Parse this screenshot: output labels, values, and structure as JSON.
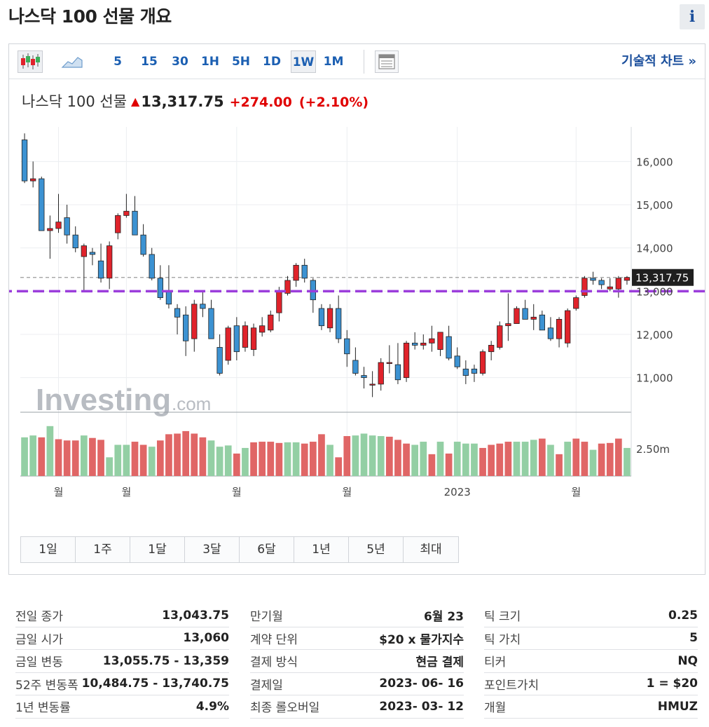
{
  "header": {
    "title": "나스닥 100 선물 개요",
    "info_label": "i"
  },
  "toolbar": {
    "intervals": [
      "5",
      "15",
      "30",
      "1H",
      "5H",
      "1D",
      "1W",
      "1M"
    ],
    "active_interval": "1W",
    "tech_chart_link": "기술적 차트 »",
    "icons": [
      "candlestick-icon",
      "area-chart-icon",
      "table-view-icon"
    ]
  },
  "quote": {
    "name": "나스닥 100 선물",
    "arrow": "▲",
    "price": "13,317.75",
    "change": "+274.00",
    "change_pct": "(+2.10%)",
    "up_color": "#e00000"
  },
  "chart_data": {
    "type": "candlestick",
    "interval": "weekly",
    "y_ticks": [
      "16,000",
      "15,000",
      "14,000",
      "13,000",
      "12,000",
      "11,000"
    ],
    "y_tick_values": [
      16000,
      15000,
      14000,
      13000,
      12000,
      11000
    ],
    "ylim": [
      10200,
      16800
    ],
    "last_price_label": "13,317.75",
    "last_price": 13317.75,
    "horizontal_line_level": 13000,
    "horizontal_line_color": "#9b3ddb",
    "volume_tick": "2.50m",
    "x_labels": [
      {
        "text": "월",
        "index": 4
      },
      {
        "text": "월",
        "index": 12
      },
      {
        "text": "월",
        "index": 25
      },
      {
        "text": "월",
        "index": 38
      },
      {
        "text": "2023",
        "index": 51
      },
      {
        "text": "월",
        "index": 65
      }
    ],
    "up_color": "#e0232b",
    "down_color": "#3c92d2",
    "volume_up_color": "#e06666",
    "volume_down_color": "#93cfa4",
    "candles": [
      {
        "o": 16500,
        "h": 16650,
        "l": 15500,
        "c": 15550
      },
      {
        "o": 15550,
        "h": 16000,
        "l": 15400,
        "c": 15600
      },
      {
        "o": 15600,
        "h": 15650,
        "l": 14400,
        "c": 14400
      },
      {
        "o": 14400,
        "h": 14750,
        "l": 13750,
        "c": 14450
      },
      {
        "o": 14450,
        "h": 15250,
        "l": 14350,
        "c": 14600
      },
      {
        "o": 14700,
        "h": 15000,
        "l": 14100,
        "c": 14300
      },
      {
        "o": 14300,
        "h": 14500,
        "l": 13900,
        "c": 14000
      },
      {
        "o": 13800,
        "h": 14100,
        "l": 13000,
        "c": 14050
      },
      {
        "o": 13900,
        "h": 14000,
        "l": 13600,
        "c": 13850
      },
      {
        "o": 13700,
        "h": 14100,
        "l": 13200,
        "c": 13300
      },
      {
        "o": 13300,
        "h": 14150,
        "l": 13050,
        "c": 14050
      },
      {
        "o": 14350,
        "h": 14800,
        "l": 14200,
        "c": 14750
      },
      {
        "o": 14750,
        "h": 15250,
        "l": 14700,
        "c": 14850
      },
      {
        "o": 14850,
        "h": 15200,
        "l": 14300,
        "c": 14300
      },
      {
        "o": 14300,
        "h": 14550,
        "l": 13800,
        "c": 13850
      },
      {
        "o": 13850,
        "h": 14000,
        "l": 13250,
        "c": 13300
      },
      {
        "o": 13300,
        "h": 13600,
        "l": 12800,
        "c": 12850
      },
      {
        "o": 13000,
        "h": 13600,
        "l": 12600,
        "c": 12700
      },
      {
        "o": 12600,
        "h": 12700,
        "l": 12000,
        "c": 12400
      },
      {
        "o": 12450,
        "h": 12650,
        "l": 11500,
        "c": 11850
      },
      {
        "o": 11900,
        "h": 12800,
        "l": 11600,
        "c": 12700
      },
      {
        "o": 12700,
        "h": 13000,
        "l": 12400,
        "c": 12600
      },
      {
        "o": 12600,
        "h": 12800,
        "l": 11900,
        "c": 11900
      },
      {
        "o": 11700,
        "h": 12000,
        "l": 11050,
        "c": 11100
      },
      {
        "o": 11400,
        "h": 12200,
        "l": 11300,
        "c": 12150
      },
      {
        "o": 12200,
        "h": 12400,
        "l": 11400,
        "c": 11600
      },
      {
        "o": 11700,
        "h": 12300,
        "l": 11600,
        "c": 12200
      },
      {
        "o": 11650,
        "h": 12250,
        "l": 11500,
        "c": 12150
      },
      {
        "o": 12050,
        "h": 12400,
        "l": 11950,
        "c": 12200
      },
      {
        "o": 12100,
        "h": 12550,
        "l": 12050,
        "c": 12450
      },
      {
        "o": 12500,
        "h": 13100,
        "l": 12300,
        "c": 13000
      },
      {
        "o": 12950,
        "h": 13350,
        "l": 12900,
        "c": 13250
      },
      {
        "o": 13250,
        "h": 13650,
        "l": 13100,
        "c": 13600
      },
      {
        "o": 13600,
        "h": 13750,
        "l": 13200,
        "c": 13300
      },
      {
        "o": 13250,
        "h": 13300,
        "l": 12500,
        "c": 12800
      },
      {
        "o": 12600,
        "h": 12700,
        "l": 12100,
        "c": 12200
      },
      {
        "o": 12150,
        "h": 12700,
        "l": 12050,
        "c": 12600
      },
      {
        "o": 12600,
        "h": 12900,
        "l": 11800,
        "c": 11900
      },
      {
        "o": 11900,
        "h": 12100,
        "l": 11250,
        "c": 11550
      },
      {
        "o": 11400,
        "h": 11700,
        "l": 11050,
        "c": 11100
      },
      {
        "o": 11050,
        "h": 11250,
        "l": 10750,
        "c": 11000
      },
      {
        "o": 10850,
        "h": 11150,
        "l": 10550,
        "c": 10850
      },
      {
        "o": 10850,
        "h": 11450,
        "l": 10700,
        "c": 11350
      },
      {
        "o": 11350,
        "h": 11750,
        "l": 11100,
        "c": 11350
      },
      {
        "o": 11300,
        "h": 11800,
        "l": 10850,
        "c": 10950
      },
      {
        "o": 11000,
        "h": 11850,
        "l": 10900,
        "c": 11800
      },
      {
        "o": 11800,
        "h": 12050,
        "l": 11650,
        "c": 11750
      },
      {
        "o": 11750,
        "h": 12000,
        "l": 11650,
        "c": 11800
      },
      {
        "o": 11800,
        "h": 12200,
        "l": 11600,
        "c": 11900
      },
      {
        "o": 11650,
        "h": 12050,
        "l": 11500,
        "c": 12050
      },
      {
        "o": 11950,
        "h": 12200,
        "l": 11400,
        "c": 11450
      },
      {
        "o": 11500,
        "h": 11700,
        "l": 11200,
        "c": 11250
      },
      {
        "o": 11200,
        "h": 11400,
        "l": 10850,
        "c": 11050
      },
      {
        "o": 11200,
        "h": 11300,
        "l": 10900,
        "c": 11100
      },
      {
        "o": 11100,
        "h": 11650,
        "l": 11050,
        "c": 11600
      },
      {
        "o": 11600,
        "h": 11850,
        "l": 11400,
        "c": 11750
      },
      {
        "o": 11700,
        "h": 12300,
        "l": 11650,
        "c": 12200
      },
      {
        "o": 12200,
        "h": 12950,
        "l": 11850,
        "c": 12250
      },
      {
        "o": 12250,
        "h": 12650,
        "l": 12250,
        "c": 12600
      },
      {
        "o": 12600,
        "h": 12800,
        "l": 12350,
        "c": 12350
      },
      {
        "o": 12350,
        "h": 12700,
        "l": 12100,
        "c": 12400
      },
      {
        "o": 12450,
        "h": 12550,
        "l": 12100,
        "c": 12100
      },
      {
        "o": 12150,
        "h": 12400,
        "l": 11850,
        "c": 11900
      },
      {
        "o": 11900,
        "h": 12400,
        "l": 11700,
        "c": 12350
      },
      {
        "o": 11800,
        "h": 12600,
        "l": 11700,
        "c": 12550
      },
      {
        "o": 12600,
        "h": 12900,
        "l": 12550,
        "c": 12850
      },
      {
        "o": 12900,
        "h": 13350,
        "l": 12850,
        "c": 13300
      },
      {
        "o": 13300,
        "h": 13450,
        "l": 13150,
        "c": 13250
      },
      {
        "o": 13250,
        "h": 13300,
        "l": 13050,
        "c": 13150
      },
      {
        "o": 13050,
        "h": 13300,
        "l": 13000,
        "c": 13100
      },
      {
        "o": 13050,
        "h": 13350,
        "l": 12850,
        "c": 13300
      },
      {
        "o": 13250,
        "h": 13350,
        "l": 13150,
        "c": 13317.75
      }
    ],
    "volume_bars": [
      {
        "v": 0.62,
        "up": false
      },
      {
        "v": 0.65,
        "up": false
      },
      {
        "v": 0.62,
        "up": true
      },
      {
        "v": 0.8,
        "up": false
      },
      {
        "v": 0.59,
        "up": true
      },
      {
        "v": 0.57,
        "up": true
      },
      {
        "v": 0.57,
        "up": true
      },
      {
        "v": 0.65,
        "up": false
      },
      {
        "v": 0.61,
        "up": true
      },
      {
        "v": 0.58,
        "up": true
      },
      {
        "v": 0.3,
        "up": false
      },
      {
        "v": 0.5,
        "up": false
      },
      {
        "v": 0.5,
        "up": false
      },
      {
        "v": 0.55,
        "up": true
      },
      {
        "v": 0.5,
        "up": true
      },
      {
        "v": 0.47,
        "up": false
      },
      {
        "v": 0.57,
        "up": true
      },
      {
        "v": 0.67,
        "up": true
      },
      {
        "v": 0.68,
        "up": true
      },
      {
        "v": 0.72,
        "up": true
      },
      {
        "v": 0.68,
        "up": true
      },
      {
        "v": 0.62,
        "up": true
      },
      {
        "v": 0.57,
        "up": false
      },
      {
        "v": 0.47,
        "up": false
      },
      {
        "v": 0.49,
        "up": false
      },
      {
        "v": 0.36,
        "up": true
      },
      {
        "v": 0.45,
        "up": false
      },
      {
        "v": 0.54,
        "up": true
      },
      {
        "v": 0.55,
        "up": true
      },
      {
        "v": 0.55,
        "up": true
      },
      {
        "v": 0.53,
        "up": true
      },
      {
        "v": 0.54,
        "up": false
      },
      {
        "v": 0.54,
        "up": false
      },
      {
        "v": 0.52,
        "up": true
      },
      {
        "v": 0.55,
        "up": true
      },
      {
        "v": 0.67,
        "up": true
      },
      {
        "v": 0.5,
        "up": false
      },
      {
        "v": 0.3,
        "up": true
      },
      {
        "v": 0.64,
        "up": true
      },
      {
        "v": 0.65,
        "up": false
      },
      {
        "v": 0.68,
        "up": false
      },
      {
        "v": 0.65,
        "up": false
      },
      {
        "v": 0.64,
        "up": false
      },
      {
        "v": 0.63,
        "up": true
      },
      {
        "v": 0.58,
        "up": true
      },
      {
        "v": 0.52,
        "up": true
      },
      {
        "v": 0.5,
        "up": false
      },
      {
        "v": 0.55,
        "up": false
      },
      {
        "v": 0.35,
        "up": true
      },
      {
        "v": 0.55,
        "up": false
      },
      {
        "v": 0.36,
        "up": true
      },
      {
        "v": 0.55,
        "up": false
      },
      {
        "v": 0.52,
        "up": false
      },
      {
        "v": 0.52,
        "up": false
      },
      {
        "v": 0.45,
        "up": true
      },
      {
        "v": 0.5,
        "up": true
      },
      {
        "v": 0.52,
        "up": true
      },
      {
        "v": 0.55,
        "up": true
      },
      {
        "v": 0.55,
        "up": false
      },
      {
        "v": 0.55,
        "up": false
      },
      {
        "v": 0.58,
        "up": false
      },
      {
        "v": 0.6,
        "up": true
      },
      {
        "v": 0.5,
        "up": false
      },
      {
        "v": 0.35,
        "up": true
      },
      {
        "v": 0.55,
        "up": false
      },
      {
        "v": 0.6,
        "up": true
      },
      {
        "v": 0.55,
        "up": true
      },
      {
        "v": 0.42,
        "up": false
      },
      {
        "v": 0.52,
        "up": true
      },
      {
        "v": 0.53,
        "up": true
      },
      {
        "v": 0.6,
        "up": true
      },
      {
        "v": 0.45,
        "up": false
      }
    ]
  },
  "ranges": [
    "1일",
    "1주",
    "1달",
    "3달",
    "6달",
    "1년",
    "5년",
    "최대"
  ],
  "stats": {
    "col1": [
      {
        "label": "전일 종가",
        "value": "13,043.75"
      },
      {
        "label": "금일 시가",
        "value": "13,060"
      },
      {
        "label": "금일 변동",
        "value": "13,055.75 - 13,359"
      },
      {
        "label": "52주 변동폭",
        "value": "10,484.75 - 13,740.75"
      },
      {
        "label": "1년 변동률",
        "value": "4.9%"
      }
    ],
    "col2": [
      {
        "label": "만기월",
        "value": "6월 23"
      },
      {
        "label": "계약 단위",
        "value": "$20 x 물가지수"
      },
      {
        "label": "결제 방식",
        "value": "현금 결제"
      },
      {
        "label": "결제일",
        "value": "2023- 06- 16"
      },
      {
        "label": "최종 롤오버일",
        "value": "2023- 03- 12"
      }
    ],
    "col3": [
      {
        "label": "틱 크기",
        "value": "0.25"
      },
      {
        "label": "틱 가치",
        "value": "5"
      },
      {
        "label": "티커",
        "value": "NQ"
      },
      {
        "label": "포인트가치",
        "value": "1 = $20"
      },
      {
        "label": "개월",
        "value": "HMUZ"
      }
    ]
  }
}
